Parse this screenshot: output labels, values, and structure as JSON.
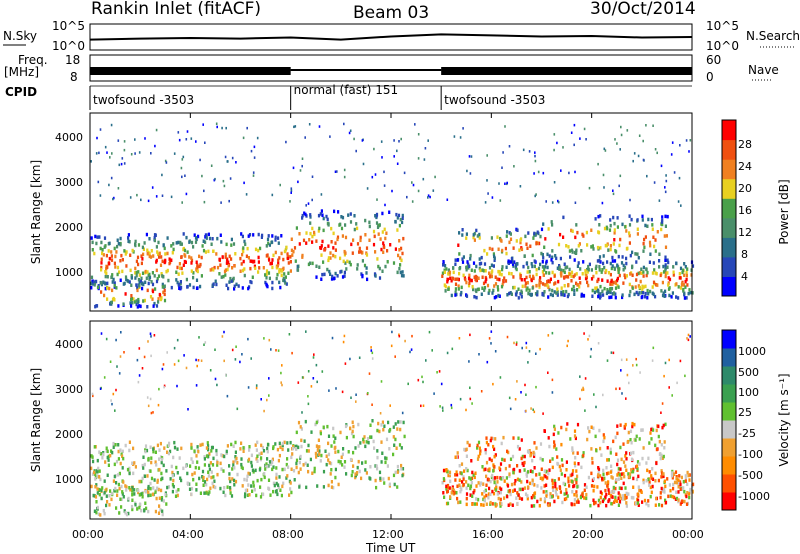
{
  "header": {
    "title": "Rankin Inlet (fitACF)",
    "beam": "Beam 03",
    "date": "30/Oct/2014"
  },
  "nsky_panel": {
    "label": "N.Sky",
    "left_ticks": [
      "10^5",
      "10^0"
    ],
    "right_ticks": [
      "10^5",
      "10^0"
    ],
    "right_label": "N.Search"
  },
  "freq_panel": {
    "label_line1": "Freq.",
    "label_line2": "[MHz]",
    "left_ticks": [
      "18",
      "8"
    ],
    "right_ticks": [
      "60",
      "0"
    ],
    "right_label": "Nave"
  },
  "cpid": {
    "label": "CPID",
    "segments": [
      {
        "name": "twofsound -3503",
        "start_h": 0.0,
        "end_h": 8.0
      },
      {
        "name": "normal (fast) 151",
        "start_h": 8.0,
        "end_h": 14.0
      },
      {
        "name": "twofsound -3503",
        "start_h": 14.0,
        "end_h": 24.0
      }
    ]
  },
  "power_panel": {
    "ylabel": "Slant Range [km]",
    "yticks": [
      "4000",
      "3000",
      "2000",
      "1000"
    ],
    "cbar_label": "Power [dB]",
    "cbar_ticks": [
      "28",
      "24",
      "20",
      "16",
      "12",
      "8",
      "4"
    ],
    "cbar_colors": [
      "#0000ff",
      "#2747b8",
      "#2a6f8a",
      "#4a8f6a",
      "#4aa04a",
      "#e8d020",
      "#f08020",
      "#f05010",
      "#ff0000"
    ]
  },
  "velocity_panel": {
    "ylabel": "Slant Range [km]",
    "yticks": [
      "4000",
      "3000",
      "2000",
      "1000"
    ],
    "cbar_label": "Velocity  [m s⁻¹]",
    "cbar_ticks": [
      "1000",
      "500",
      "100",
      "25",
      "-25",
      "-100",
      "-500",
      "-1000"
    ],
    "cbar_colors": [
      "#ff0000",
      "#ff5000",
      "#ff8c00",
      "#f0a030",
      "#c8c8c8",
      "#60c030",
      "#3aa050",
      "#2e8a6a",
      "#2060a0",
      "#0000ff"
    ]
  },
  "xaxis": {
    "label": "Time UT",
    "ticks": [
      "00:00",
      "04:00",
      "08:00",
      "12:00",
      "16:00",
      "20:00",
      "00:00"
    ]
  },
  "chart_data": [
    {
      "type": "line",
      "title": "N.Sky / N.Search",
      "x_range_hours": [
        0,
        24
      ],
      "ylim_log": [
        0,
        5
      ],
      "series": [
        {
          "name": "N.Sky",
          "x": [
            0,
            2,
            4,
            6,
            8,
            10,
            12,
            14,
            16,
            18,
            20,
            22,
            24
          ],
          "values": [
            2.0,
            2.2,
            2.3,
            2.2,
            2.4,
            2.0,
            2.6,
            3.0,
            2.8,
            2.6,
            2.7,
            2.4,
            2.5
          ]
        }
      ]
    },
    {
      "type": "line",
      "title": "Freq. / Nave",
      "x_range_hours": [
        0,
        24
      ],
      "ylim": [
        8,
        18
      ],
      "series": [
        {
          "name": "Freq.",
          "x": [
            0,
            8,
            8.5,
            14,
            24
          ],
          "values": [
            11,
            11,
            11,
            11,
            11
          ]
        }
      ]
    },
    {
      "type": "heatmap",
      "title": "Power [dB]",
      "x_range_hours": [
        0,
        24
      ],
      "ylim_km": [
        180,
        4500
      ],
      "colorbar": [
        4,
        8,
        12,
        16,
        20,
        24,
        28
      ]
    },
    {
      "type": "heatmap",
      "title": "Velocity [m s-1]",
      "x_range_hours": [
        0,
        24
      ],
      "ylim_km": [
        180,
        4500
      ],
      "colorbar": [
        -1000,
        -500,
        -100,
        -25,
        25,
        100,
        500,
        1000
      ]
    }
  ]
}
